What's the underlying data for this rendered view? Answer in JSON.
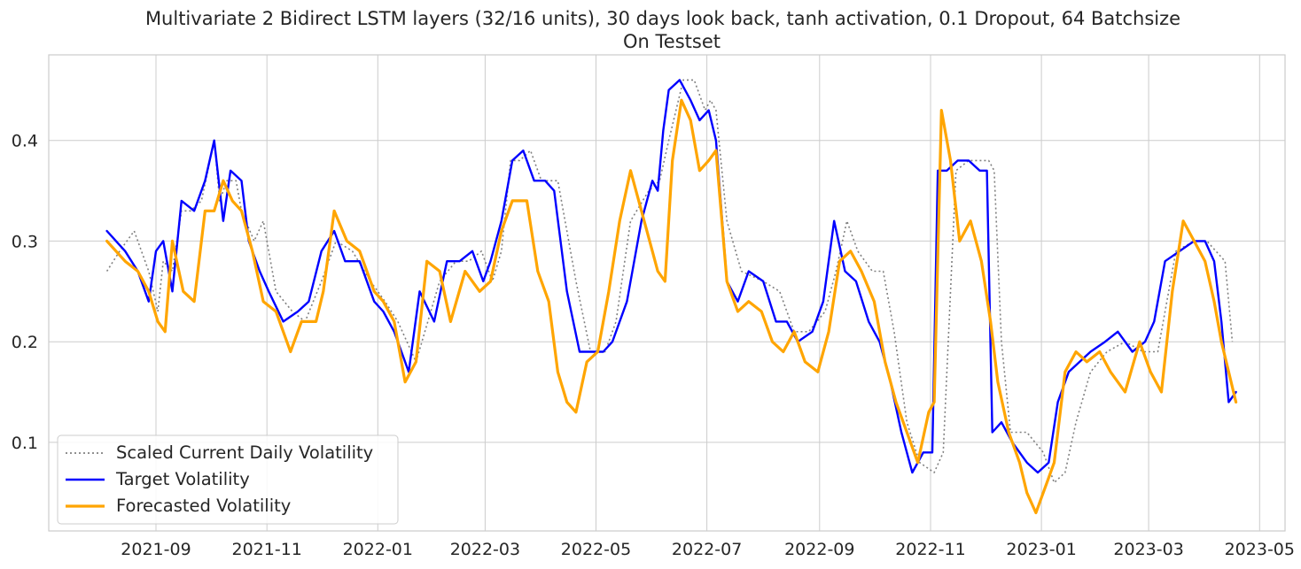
{
  "chart_data": {
    "type": "line",
    "title": "Multivariate 2 Bidirect LSTM layers (32/16 units), 30 days look back, tanh activation, 0.1 Dropout, 64 Batchsize",
    "subtitle": "On Testset",
    "xlabel": "",
    "ylabel": "",
    "grid": true,
    "legend_position": "bottom-left",
    "xlim": [
      "2021-07-04",
      "2023-05-15"
    ],
    "ylim": [
      0.012,
      0.485
    ],
    "x_ticks": [
      "2021-09",
      "2021-11",
      "2022-01",
      "2022-03",
      "2022-05",
      "2022-07",
      "2022-09",
      "2022-11",
      "2023-01",
      "2023-03",
      "2023-05"
    ],
    "x_tick_dates": [
      "2021-09-01",
      "2021-11-01",
      "2022-01-01",
      "2022-03-01",
      "2022-05-01",
      "2022-07-01",
      "2022-09-01",
      "2022-11-01",
      "2023-01-01",
      "2023-03-01",
      "2023-05-01"
    ],
    "y_ticks": [
      "0.1",
      "0.2",
      "0.3",
      "0.4"
    ],
    "y_tick_values": [
      0.1,
      0.2,
      0.3,
      0.4
    ],
    "series": [
      {
        "name": "Scaled Current Daily Volatility",
        "color": "#808080",
        "style": "dotted",
        "x": [
          "2021-08-05",
          "2021-08-12",
          "2021-08-20",
          "2021-08-28",
          "2021-09-02",
          "2021-09-05",
          "2021-09-10",
          "2021-09-15",
          "2021-09-20",
          "2021-09-26",
          "2021-10-03",
          "2021-10-06",
          "2021-10-10",
          "2021-10-15",
          "2021-10-18",
          "2021-10-25",
          "2021-10-30",
          "2021-11-06",
          "2021-11-15",
          "2021-11-22",
          "2021-12-01",
          "2021-12-09",
          "2021-12-18",
          "2021-12-28",
          "2022-01-05",
          "2022-01-12",
          "2022-01-22",
          "2022-02-04",
          "2022-02-13",
          "2022-02-20",
          "2022-02-27",
          "2022-03-05",
          "2022-03-10",
          "2022-03-15",
          "2022-03-20",
          "2022-03-26",
          "2022-04-01",
          "2022-04-10",
          "2022-04-20",
          "2022-04-28",
          "2022-05-06",
          "2022-05-12",
          "2022-05-20",
          "2022-05-30",
          "2022-06-05",
          "2022-06-10",
          "2022-06-14",
          "2022-06-18",
          "2022-06-24",
          "2022-06-30",
          "2022-07-03",
          "2022-07-06",
          "2022-07-12",
          "2022-07-20",
          "2022-08-01",
          "2022-08-10",
          "2022-08-18",
          "2022-08-26",
          "2022-09-04",
          "2022-09-10",
          "2022-09-16",
          "2022-09-22",
          "2022-09-30",
          "2022-10-06",
          "2022-10-12",
          "2022-10-19",
          "2022-10-26",
          "2022-11-03",
          "2022-11-08",
          "2022-11-15",
          "2022-11-22",
          "2022-11-28",
          "2022-12-03",
          "2022-12-06",
          "2022-12-10",
          "2022-12-15",
          "2022-12-24",
          "2023-01-02",
          "2023-01-08",
          "2023-01-14",
          "2023-01-20",
          "2023-01-28",
          "2023-02-06",
          "2023-02-16",
          "2023-02-26",
          "2023-03-06",
          "2023-03-16",
          "2023-03-26",
          "2023-04-02",
          "2023-04-07",
          "2023-04-12",
          "2023-04-16"
        ],
        "y": [
          0.27,
          0.29,
          0.31,
          0.27,
          0.23,
          0.28,
          0.27,
          0.33,
          0.33,
          0.34,
          0.4,
          0.34,
          0.36,
          0.36,
          0.33,
          0.3,
          0.32,
          0.25,
          0.23,
          0.22,
          0.26,
          0.3,
          0.29,
          0.26,
          0.24,
          0.22,
          0.18,
          0.26,
          0.28,
          0.28,
          0.29,
          0.26,
          0.29,
          0.38,
          0.38,
          0.39,
          0.36,
          0.36,
          0.26,
          0.19,
          0.19,
          0.22,
          0.32,
          0.35,
          0.36,
          0.4,
          0.43,
          0.46,
          0.46,
          0.43,
          0.44,
          0.43,
          0.32,
          0.27,
          0.26,
          0.25,
          0.21,
          0.21,
          0.23,
          0.27,
          0.32,
          0.29,
          0.27,
          0.27,
          0.21,
          0.12,
          0.08,
          0.07,
          0.09,
          0.37,
          0.38,
          0.38,
          0.38,
          0.37,
          0.2,
          0.11,
          0.11,
          0.09,
          0.06,
          0.07,
          0.12,
          0.17,
          0.19,
          0.2,
          0.19,
          0.19,
          0.29,
          0.3,
          0.3,
          0.29,
          0.28,
          0.2
        ]
      },
      {
        "name": "Target Volatility",
        "color": "#0000ff",
        "style": "solid",
        "x": [
          "2021-08-05",
          "2021-08-10",
          "2021-08-15",
          "2021-08-22",
          "2021-08-28",
          "2021-09-01",
          "2021-09-05",
          "2021-09-10",
          "2021-09-15",
          "2021-09-22",
          "2021-09-28",
          "2021-10-03",
          "2021-10-08",
          "2021-10-12",
          "2021-10-18",
          "2021-10-22",
          "2021-10-28",
          "2021-11-02",
          "2021-11-10",
          "2021-11-18",
          "2021-11-24",
          "2021-12-01",
          "2021-12-08",
          "2021-12-14",
          "2021-12-22",
          "2021-12-30",
          "2022-01-04",
          "2022-01-10",
          "2022-01-18",
          "2022-01-24",
          "2022-02-01",
          "2022-02-08",
          "2022-02-15",
          "2022-02-22",
          "2022-02-28",
          "2022-03-04",
          "2022-03-10",
          "2022-03-16",
          "2022-03-22",
          "2022-03-28",
          "2022-04-03",
          "2022-04-08",
          "2022-04-15",
          "2022-04-22",
          "2022-04-30",
          "2022-05-05",
          "2022-05-10",
          "2022-05-18",
          "2022-05-26",
          "2022-06-01",
          "2022-06-04",
          "2022-06-07",
          "2022-06-10",
          "2022-06-16",
          "2022-06-22",
          "2022-06-27",
          "2022-07-02",
          "2022-07-06",
          "2022-07-12",
          "2022-07-18",
          "2022-07-24",
          "2022-08-01",
          "2022-08-08",
          "2022-08-14",
          "2022-08-20",
          "2022-08-28",
          "2022-09-03",
          "2022-09-09",
          "2022-09-15",
          "2022-09-21",
          "2022-09-28",
          "2022-10-04",
          "2022-10-10",
          "2022-10-16",
          "2022-10-22",
          "2022-10-28",
          "2022-11-02",
          "2022-11-05",
          "2022-11-10",
          "2022-11-16",
          "2022-11-22",
          "2022-11-28",
          "2022-12-02",
          "2022-12-05",
          "2022-12-10",
          "2022-12-16",
          "2022-12-24",
          "2022-12-30",
          "2023-01-05",
          "2023-01-10",
          "2023-01-16",
          "2023-01-22",
          "2023-01-28",
          "2023-02-05",
          "2023-02-12",
          "2023-02-20",
          "2023-02-27",
          "2023-03-04",
          "2023-03-10",
          "2023-03-18",
          "2023-03-26",
          "2023-04-01",
          "2023-04-06",
          "2023-04-10",
          "2023-04-14",
          "2023-04-18"
        ],
        "y": [
          0.31,
          0.3,
          0.29,
          0.27,
          0.24,
          0.29,
          0.3,
          0.25,
          0.34,
          0.33,
          0.36,
          0.4,
          0.32,
          0.37,
          0.36,
          0.3,
          0.27,
          0.25,
          0.22,
          0.23,
          0.24,
          0.29,
          0.31,
          0.28,
          0.28,
          0.24,
          0.23,
          0.21,
          0.17,
          0.25,
          0.22,
          0.28,
          0.28,
          0.29,
          0.26,
          0.28,
          0.32,
          0.38,
          0.39,
          0.36,
          0.36,
          0.35,
          0.25,
          0.19,
          0.19,
          0.19,
          0.2,
          0.24,
          0.32,
          0.36,
          0.35,
          0.41,
          0.45,
          0.46,
          0.44,
          0.42,
          0.43,
          0.4,
          0.26,
          0.24,
          0.27,
          0.26,
          0.22,
          0.22,
          0.2,
          0.21,
          0.24,
          0.32,
          0.27,
          0.26,
          0.22,
          0.2,
          0.16,
          0.11,
          0.07,
          0.09,
          0.09,
          0.37,
          0.37,
          0.38,
          0.38,
          0.37,
          0.37,
          0.11,
          0.12,
          0.1,
          0.08,
          0.07,
          0.08,
          0.14,
          0.17,
          0.18,
          0.19,
          0.2,
          0.21,
          0.19,
          0.2,
          0.22,
          0.28,
          0.29,
          0.3,
          0.3,
          0.28,
          0.22,
          0.14,
          0.15
        ]
      },
      {
        "name": "Forecasted Volatility",
        "color": "#ffa500",
        "style": "solid",
        "x": [
          "2021-08-05",
          "2021-08-10",
          "2021-08-15",
          "2021-08-22",
          "2021-08-28",
          "2021-09-02",
          "2021-09-06",
          "2021-09-10",
          "2021-09-16",
          "2021-09-22",
          "2021-09-28",
          "2021-10-03",
          "2021-10-08",
          "2021-10-13",
          "2021-10-18",
          "2021-10-24",
          "2021-10-30",
          "2021-11-06",
          "2021-11-14",
          "2021-11-20",
          "2021-11-28",
          "2021-12-02",
          "2021-12-08",
          "2021-12-15",
          "2021-12-22",
          "2021-12-30",
          "2022-01-04",
          "2022-01-10",
          "2022-01-16",
          "2022-01-22",
          "2022-01-28",
          "2022-02-04",
          "2022-02-10",
          "2022-02-18",
          "2022-02-26",
          "2022-03-04",
          "2022-03-10",
          "2022-03-16",
          "2022-03-24",
          "2022-03-30",
          "2022-04-05",
          "2022-04-10",
          "2022-04-15",
          "2022-04-20",
          "2022-04-26",
          "2022-05-02",
          "2022-05-08",
          "2022-05-14",
          "2022-05-20",
          "2022-05-26",
          "2022-06-01",
          "2022-06-04",
          "2022-06-08",
          "2022-06-12",
          "2022-06-17",
          "2022-06-22",
          "2022-06-27",
          "2022-07-02",
          "2022-07-06",
          "2022-07-12",
          "2022-07-18",
          "2022-07-24",
          "2022-07-31",
          "2022-08-06",
          "2022-08-12",
          "2022-08-18",
          "2022-08-24",
          "2022-08-31",
          "2022-09-06",
          "2022-09-12",
          "2022-09-18",
          "2022-09-24",
          "2022-10-01",
          "2022-10-07",
          "2022-10-13",
          "2022-10-19",
          "2022-10-25",
          "2022-10-31",
          "2022-11-03",
          "2022-11-07",
          "2022-11-12",
          "2022-11-17",
          "2022-11-23",
          "2022-11-29",
          "2022-12-04",
          "2022-12-08",
          "2022-12-14",
          "2022-12-20",
          "2022-12-24",
          "2022-12-29",
          "2023-01-04",
          "2023-01-08",
          "2023-01-14",
          "2023-01-20",
          "2023-01-26",
          "2023-02-02",
          "2023-02-08",
          "2023-02-16",
          "2023-02-24",
          "2023-03-02",
          "2023-03-08",
          "2023-03-14",
          "2023-03-20",
          "2023-03-26",
          "2023-04-01",
          "2023-04-06",
          "2023-04-10",
          "2023-04-14",
          "2023-04-18"
        ],
        "y": [
          0.3,
          0.29,
          0.28,
          0.27,
          0.25,
          0.22,
          0.21,
          0.3,
          0.25,
          0.24,
          0.33,
          0.33,
          0.36,
          0.34,
          0.33,
          0.29,
          0.24,
          0.23,
          0.19,
          0.22,
          0.22,
          0.25,
          0.33,
          0.3,
          0.29,
          0.25,
          0.24,
          0.22,
          0.16,
          0.18,
          0.28,
          0.27,
          0.22,
          0.27,
          0.25,
          0.26,
          0.31,
          0.34,
          0.34,
          0.27,
          0.24,
          0.17,
          0.14,
          0.13,
          0.18,
          0.19,
          0.25,
          0.32,
          0.37,
          0.33,
          0.29,
          0.27,
          0.26,
          0.38,
          0.44,
          0.42,
          0.37,
          0.38,
          0.39,
          0.26,
          0.23,
          0.24,
          0.23,
          0.2,
          0.19,
          0.21,
          0.18,
          0.17,
          0.21,
          0.28,
          0.29,
          0.27,
          0.24,
          0.18,
          0.14,
          0.11,
          0.08,
          0.13,
          0.14,
          0.43,
          0.38,
          0.3,
          0.32,
          0.28,
          0.22,
          0.16,
          0.11,
          0.08,
          0.05,
          0.03,
          0.06,
          0.08,
          0.17,
          0.19,
          0.18,
          0.19,
          0.17,
          0.15,
          0.2,
          0.17,
          0.15,
          0.25,
          0.32,
          0.3,
          0.28,
          0.24,
          0.2,
          0.17,
          0.14
        ]
      }
    ]
  }
}
